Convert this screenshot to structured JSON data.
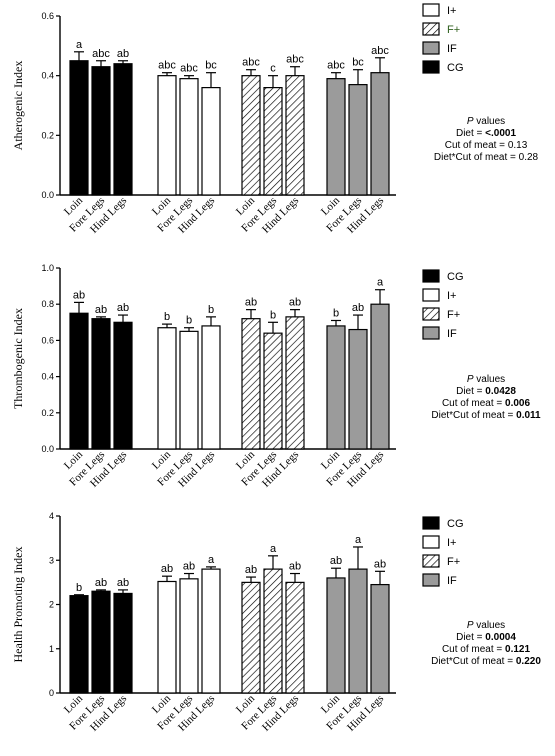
{
  "chart_data": [
    {
      "type": "bar",
      "ylabel": "Atherogenic Index",
      "ylim": [
        0,
        0.6
      ],
      "yticks": [
        "0.0",
        "0.2",
        "0.4",
        "0.6"
      ],
      "yticks_values": [
        0,
        0.2,
        0.4,
        0.6
      ],
      "categories": [
        "Loin",
        "Fore Legs",
        "Hind Legs"
      ],
      "groups": [
        {
          "name": "CG",
          "fill": "#000000",
          "pattern": "solid",
          "values": [
            0.45,
            0.43,
            0.44
          ],
          "errors": [
            0.03,
            0.02,
            0.01
          ],
          "letters": [
            "a",
            "abc",
            "ab"
          ]
        },
        {
          "name": "I+",
          "fill": "#ffffff",
          "pattern": "solid",
          "values": [
            0.4,
            0.39,
            0.36
          ],
          "errors": [
            0.01,
            0.01,
            0.05
          ],
          "letters": [
            "abc",
            "abc",
            "bc"
          ]
        },
        {
          "name": "F+",
          "fill": "#ffffff",
          "pattern": "hatch",
          "values": [
            0.4,
            0.36,
            0.4
          ],
          "errors": [
            0.02,
            0.04,
            0.03
          ],
          "letters": [
            "abc",
            "c",
            "abc"
          ]
        },
        {
          "name": "IF",
          "fill": "#9b9b9b",
          "pattern": "solid",
          "values": [
            0.39,
            0.37,
            0.41
          ],
          "errors": [
            0.02,
            0.05,
            0.05
          ],
          "letters": [
            "abc",
            "bc",
            "abc"
          ]
        }
      ],
      "legend_order": [
        "I+",
        "F+",
        "IF",
        "CG"
      ],
      "legend_colors": {
        "I+": "#000000",
        "F+": "#2e5e1c",
        "IF": "#000000",
        "CG": "#000000"
      },
      "pvalues": {
        "title_p": "P",
        "title_rest": " values",
        "lines": [
          {
            "label": "Diet = ",
            "value": "<.0001",
            "bold": true
          },
          {
            "label": "Cut of meat = ",
            "value": "0.13",
            "bold": false
          },
          {
            "label": "Diet*Cut of meat = ",
            "value": "0.28",
            "bold": false
          }
        ]
      }
    },
    {
      "type": "bar",
      "ylabel": "Thrombogenic Index",
      "ylim": [
        0,
        1.0
      ],
      "yticks": [
        "0.0",
        "0.2",
        "0.4",
        "0.6",
        "0.8",
        "1.0"
      ],
      "yticks_values": [
        0,
        0.2,
        0.4,
        0.6,
        0.8,
        1.0
      ],
      "categories": [
        "Loin",
        "Fore Legs",
        "Hind Legs"
      ],
      "groups": [
        {
          "name": "CG",
          "fill": "#000000",
          "pattern": "solid",
          "values": [
            0.75,
            0.72,
            0.7
          ],
          "errors": [
            0.06,
            0.01,
            0.04
          ],
          "letters": [
            "ab",
            "ab",
            "ab"
          ]
        },
        {
          "name": "I+",
          "fill": "#ffffff",
          "pattern": "solid",
          "values": [
            0.67,
            0.65,
            0.68
          ],
          "errors": [
            0.02,
            0.02,
            0.05
          ],
          "letters": [
            "b",
            "b",
            "b"
          ]
        },
        {
          "name": "F+",
          "fill": "#ffffff",
          "pattern": "hatch",
          "values": [
            0.72,
            0.64,
            0.73
          ],
          "errors": [
            0.05,
            0.06,
            0.04
          ],
          "letters": [
            "ab",
            "b",
            "ab"
          ]
        },
        {
          "name": "IF",
          "fill": "#9b9b9b",
          "pattern": "solid",
          "values": [
            0.68,
            0.66,
            0.8
          ],
          "errors": [
            0.03,
            0.08,
            0.08
          ],
          "letters": [
            "b",
            "ab",
            "a"
          ]
        }
      ],
      "legend_order": [
        "CG",
        "I+",
        "F+",
        "IF"
      ],
      "legend_colors": {
        "I+": "#000000",
        "F+": "#000000",
        "IF": "#000000",
        "CG": "#000000"
      },
      "pvalues": {
        "title_p": "P",
        "title_rest": " values",
        "lines": [
          {
            "label": "Diet = ",
            "value": "0.0428",
            "bold": true
          },
          {
            "label": "Cut of meat = ",
            "value": "0.006",
            "bold": true
          },
          {
            "label": "Diet*Cut of meat = ",
            "value": "0.011",
            "bold": true
          }
        ]
      }
    },
    {
      "type": "bar",
      "ylabel": "Health Promoting Index",
      "ylim": [
        0,
        4
      ],
      "yticks": [
        "0",
        "1",
        "2",
        "3",
        "4"
      ],
      "yticks_values": [
        0,
        1,
        2,
        3,
        4
      ],
      "categories": [
        "Loin",
        "Fore Legs",
        "Hind Legs"
      ],
      "groups": [
        {
          "name": "CG",
          "fill": "#000000",
          "pattern": "solid",
          "values": [
            2.2,
            2.3,
            2.25
          ],
          "errors": [
            0.02,
            0.03,
            0.08
          ],
          "letters": [
            "b",
            "ab",
            "ab"
          ]
        },
        {
          "name": "I+",
          "fill": "#ffffff",
          "pattern": "solid",
          "values": [
            2.52,
            2.58,
            2.8
          ],
          "errors": [
            0.12,
            0.12,
            0.05
          ],
          "letters": [
            "ab",
            "ab",
            "a"
          ]
        },
        {
          "name": "F+",
          "fill": "#ffffff",
          "pattern": "hatch",
          "values": [
            2.5,
            2.8,
            2.5
          ],
          "errors": [
            0.12,
            0.3,
            0.2
          ],
          "letters": [
            "ab",
            "a",
            "ab"
          ]
        },
        {
          "name": "IF",
          "fill": "#9b9b9b",
          "pattern": "solid",
          "values": [
            2.6,
            2.8,
            2.45
          ],
          "errors": [
            0.22,
            0.5,
            0.3
          ],
          "letters": [
            "ab",
            "a",
            "ab"
          ]
        }
      ],
      "legend_order": [
        "CG",
        "I+",
        "F+",
        "IF"
      ],
      "legend_colors": {
        "I+": "#000000",
        "F+": "#000000",
        "IF": "#000000",
        "CG": "#000000"
      },
      "pvalues": {
        "title_p": "P",
        "title_rest": " values",
        "lines": [
          {
            "label": "Diet = ",
            "value": "0.0004",
            "bold": true
          },
          {
            "label": "Cut of meat = ",
            "value": "0.121",
            "bold": true
          },
          {
            "label": "Diet*Cut of meat = ",
            "value": "0.220",
            "bold": true
          }
        ]
      }
    }
  ]
}
